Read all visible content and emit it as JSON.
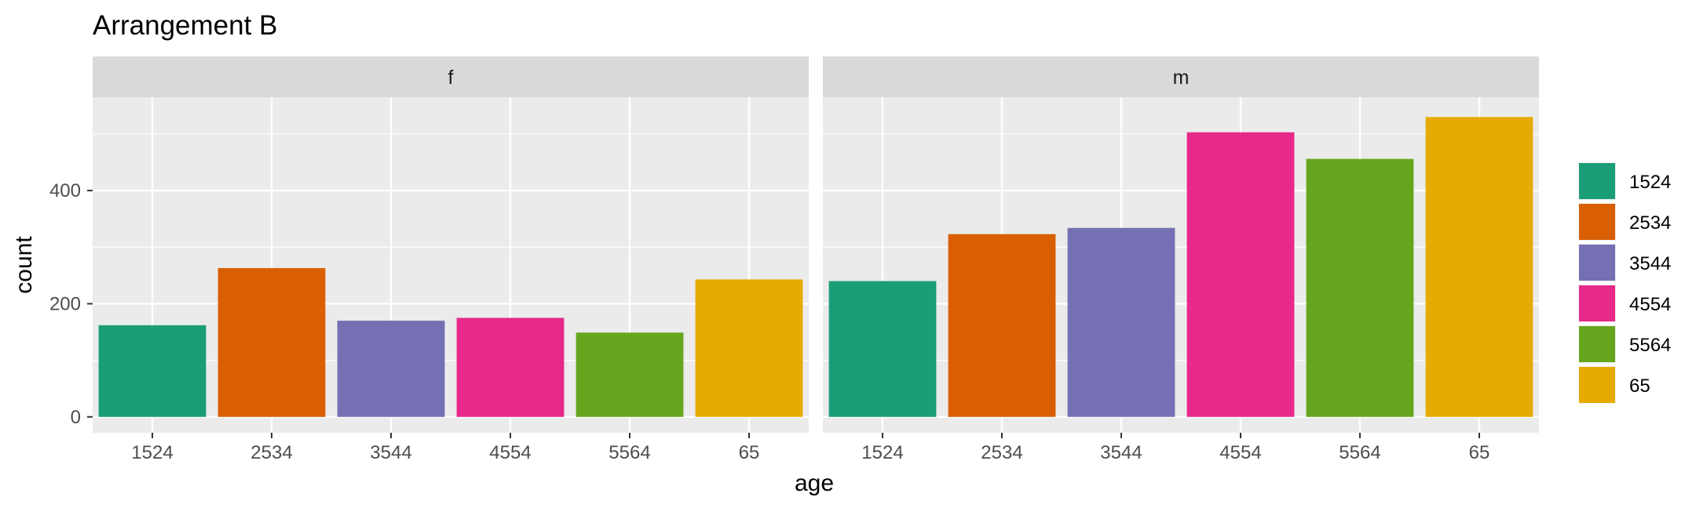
{
  "chart_data": {
    "type": "bar",
    "title": "Arrangement B",
    "xlabel": "age",
    "ylabel": "count",
    "ylim": [
      -28,
      565
    ],
    "y_ticks": [
      0,
      200,
      400
    ],
    "y_tick_labels": [
      "0",
      "200",
      "400"
    ],
    "grid": true,
    "legend_placement": "right",
    "categories": [
      "1524",
      "2534",
      "3544",
      "4554",
      "5564",
      "65"
    ],
    "colors": [
      "#1b9e77",
      "#d95f02",
      "#7570b3",
      "#e7298a",
      "#66a61e",
      "#e6ab02"
    ],
    "legend": [
      "1524",
      "2534",
      "3544",
      "4554",
      "5564",
      "65"
    ],
    "panels": [
      {
        "label": "f",
        "values": [
          162,
          263,
          170,
          175,
          149,
          243
        ]
      },
      {
        "label": "m",
        "values": [
          240,
          323,
          334,
          503,
          456,
          530
        ]
      }
    ]
  }
}
